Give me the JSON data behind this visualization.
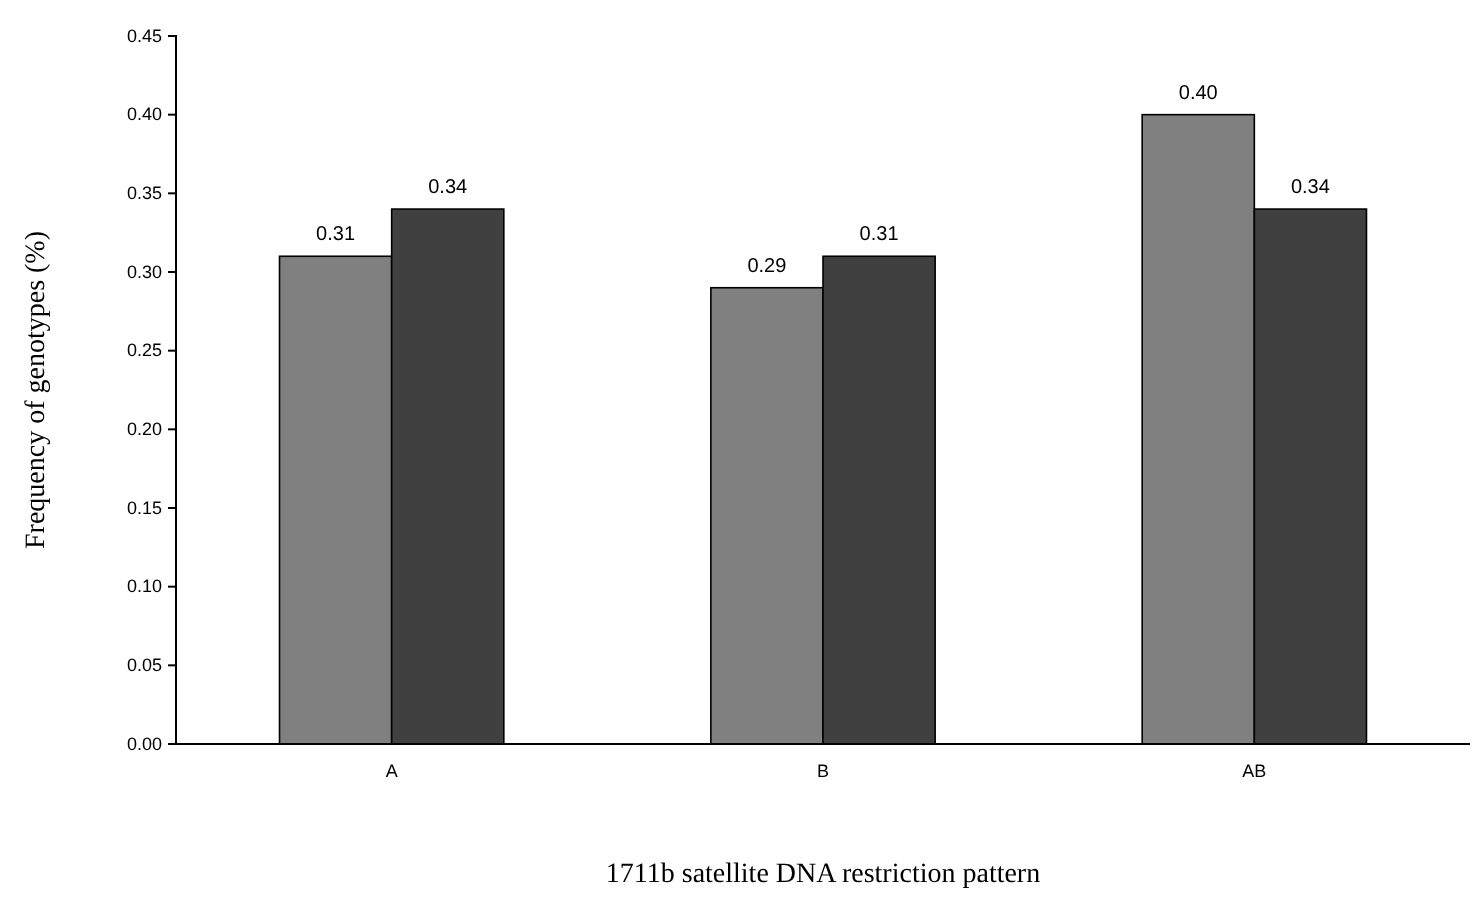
{
  "chart_data": {
    "type": "bar",
    "xlabel": "1711b satellite DNA restriction pattern",
    "ylabel": "Frequency of genotypes  (%)",
    "categories": [
      "A",
      "B",
      "AB"
    ],
    "series": [
      {
        "color": "#808080",
        "values": [
          0.31,
          0.29,
          0.4
        ],
        "value_labels": [
          "0.31",
          "0.29",
          "0.40"
        ]
      },
      {
        "color": "#404040",
        "values": [
          0.34,
          0.31,
          0.34
        ],
        "value_labels": [
          "0.34",
          "0.31",
          "0.34"
        ]
      }
    ],
    "ylim": [
      0,
      0.45
    ],
    "yticks": [
      {
        "value": 0,
        "label": "0.00"
      },
      {
        "value": 0.05,
        "label": "0.05"
      },
      {
        "value": 0.1,
        "label": "0.10"
      },
      {
        "value": 0.15,
        "label": "0.15"
      },
      {
        "value": 0.2,
        "label": "0.20"
      },
      {
        "value": 0.25,
        "label": "0.25"
      },
      {
        "value": 0.3,
        "label": "0.30"
      },
      {
        "value": 0.35,
        "label": "0.35"
      },
      {
        "value": 0.4,
        "label": "0.40"
      },
      {
        "value": 0.45,
        "label": "0.45"
      }
    ],
    "grid": false
  }
}
